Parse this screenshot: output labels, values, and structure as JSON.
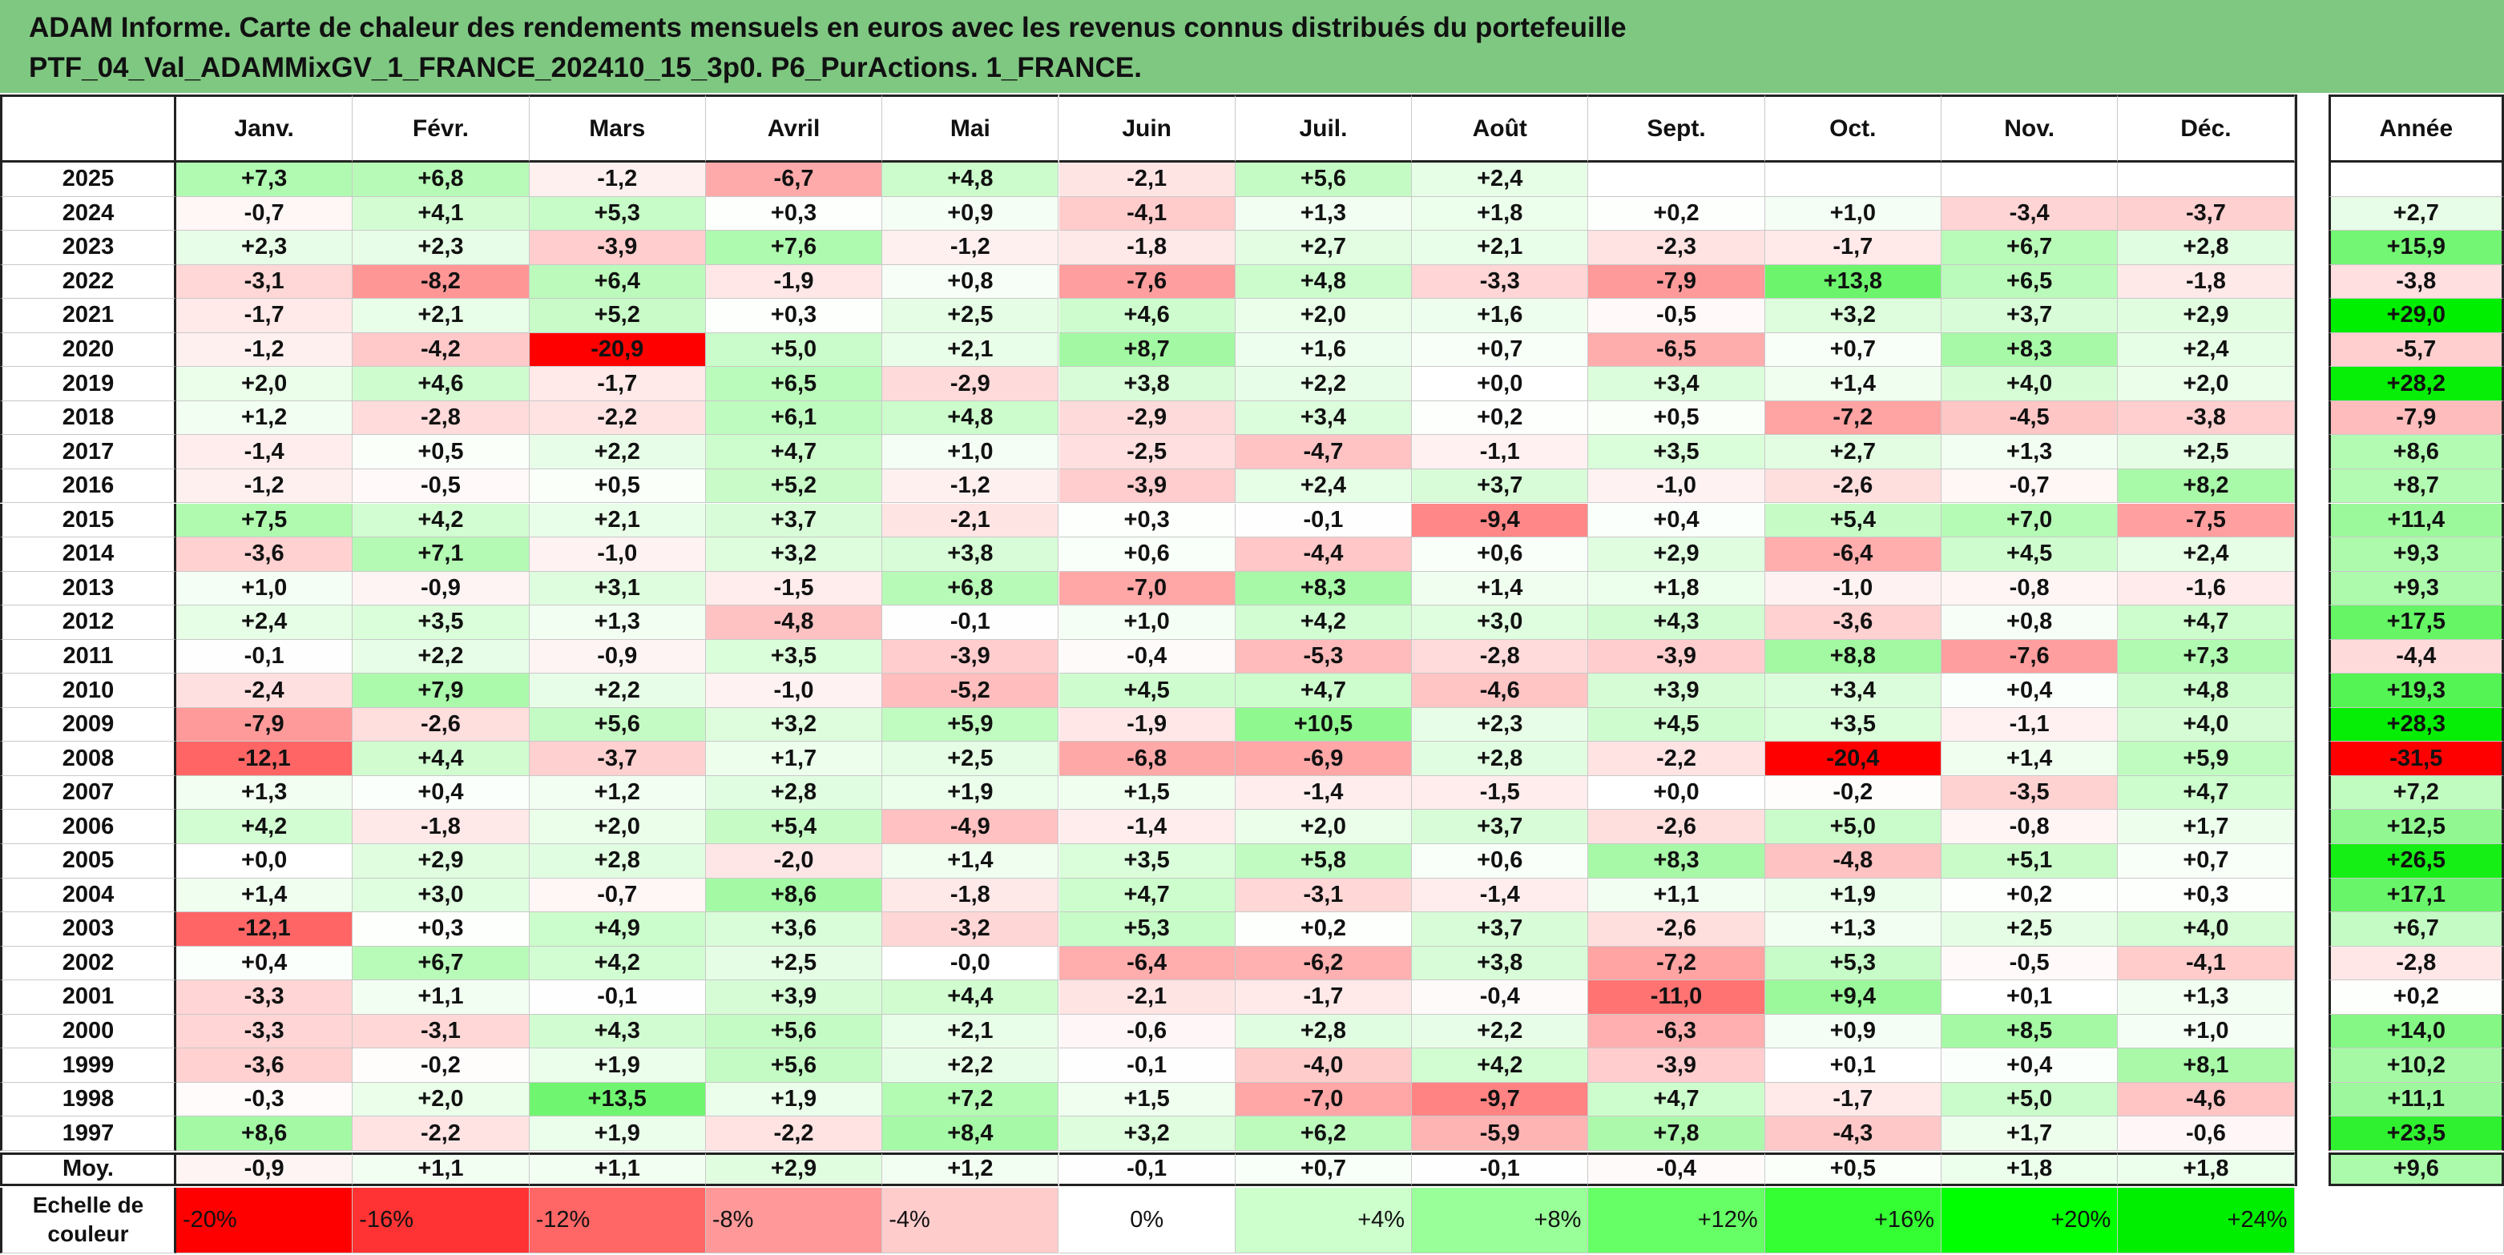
{
  "title": {
    "line1": "ADAM Informe. Carte de chaleur des rendements mensuels en euros avec les revenus connus distribués du portefeuille",
    "line2": "PTF_04_Val_ADAMMixGV_1_FRANCE_202410_15_3p0. P6_PurActions. 1_FRANCE."
  },
  "chart_data": {
    "type": "heatmap",
    "title": "ADAM Informe. Carte de chaleur des rendements mensuels en euros avec les revenus connus distribués du portefeuille PTF_04_Val_ADAMMixGV_1_FRANCE_202410_15_3p0. P6_PurActions. 1_FRANCE.",
    "columns": [
      "Janv.",
      "Févr.",
      "Mars",
      "Avril",
      "Mai",
      "Juin",
      "Juil.",
      "Août",
      "Sept.",
      "Oct.",
      "Nov.",
      "Déc."
    ],
    "annual_label": "Année",
    "rows": [
      {
        "year": "2025",
        "months": [
          "+7,3",
          "+6,8",
          "-1,2",
          "-6,7",
          "+4,8",
          "-2,1",
          "+5,6",
          "+2,4",
          "",
          "",
          "",
          ""
        ],
        "annual": ""
      },
      {
        "year": "2024",
        "months": [
          "-0,7",
          "+4,1",
          "+5,3",
          "+0,3",
          "+0,9",
          "-4,1",
          "+1,3",
          "+1,8",
          "+0,2",
          "+1,0",
          "-3,4",
          "-3,7"
        ],
        "annual": "+2,7"
      },
      {
        "year": "2023",
        "months": [
          "+2,3",
          "+2,3",
          "-3,9",
          "+7,6",
          "-1,2",
          "-1,8",
          "+2,7",
          "+2,1",
          "-2,3",
          "-1,7",
          "+6,7",
          "+2,8"
        ],
        "annual": "+15,9"
      },
      {
        "year": "2022",
        "months": [
          "-3,1",
          "-8,2",
          "+6,4",
          "-1,9",
          "+0,8",
          "-7,6",
          "+4,8",
          "-3,3",
          "-7,9",
          "+13,8",
          "+6,5",
          "-1,8"
        ],
        "annual": "-3,8"
      },
      {
        "year": "2021",
        "months": [
          "-1,7",
          "+2,1",
          "+5,2",
          "+0,3",
          "+2,5",
          "+4,6",
          "+2,0",
          "+1,6",
          "-0,5",
          "+3,2",
          "+3,7",
          "+2,9"
        ],
        "annual": "+29,0"
      },
      {
        "year": "2020",
        "months": [
          "-1,2",
          "-4,2",
          "-20,9",
          "+5,0",
          "+2,1",
          "+8,7",
          "+1,6",
          "+0,7",
          "-6,5",
          "+0,7",
          "+8,3",
          "+2,4"
        ],
        "annual": "-5,7"
      },
      {
        "year": "2019",
        "months": [
          "+2,0",
          "+4,6",
          "-1,7",
          "+6,5",
          "-2,9",
          "+3,8",
          "+2,2",
          "+0,0",
          "+3,4",
          "+1,4",
          "+4,0",
          "+2,0"
        ],
        "annual": "+28,2"
      },
      {
        "year": "2018",
        "months": [
          "+1,2",
          "-2,8",
          "-2,2",
          "+6,1",
          "+4,8",
          "-2,9",
          "+3,4",
          "+0,2",
          "+0,5",
          "-7,2",
          "-4,5",
          "-3,8"
        ],
        "annual": "-7,9"
      },
      {
        "year": "2017",
        "months": [
          "-1,4",
          "+0,5",
          "+2,2",
          "+4,7",
          "+1,0",
          "-2,5",
          "-4,7",
          "-1,1",
          "+3,5",
          "+2,7",
          "+1,3",
          "+2,5"
        ],
        "annual": "+8,6"
      },
      {
        "year": "2016",
        "months": [
          "-1,2",
          "-0,5",
          "+0,5",
          "+5,2",
          "-1,2",
          "-3,9",
          "+2,4",
          "+3,7",
          "-1,0",
          "-2,6",
          "-0,7",
          "+8,2"
        ],
        "annual": "+8,7"
      },
      {
        "year": "2015",
        "months": [
          "+7,5",
          "+4,2",
          "+2,1",
          "+3,7",
          "-2,1",
          "+0,3",
          "-0,1",
          "-9,4",
          "+0,4",
          "+5,4",
          "+7,0",
          "-7,5"
        ],
        "annual": "+11,4"
      },
      {
        "year": "2014",
        "months": [
          "-3,6",
          "+7,1",
          "-1,0",
          "+3,2",
          "+3,8",
          "+0,6",
          "-4,4",
          "+0,6",
          "+2,9",
          "-6,4",
          "+4,5",
          "+2,4"
        ],
        "annual": "+9,3"
      },
      {
        "year": "2013",
        "months": [
          "+1,0",
          "-0,9",
          "+3,1",
          "-1,5",
          "+6,8",
          "-7,0",
          "+8,3",
          "+1,4",
          "+1,8",
          "-1,0",
          "-0,8",
          "-1,6"
        ],
        "annual": "+9,3"
      },
      {
        "year": "2012",
        "months": [
          "+2,4",
          "+3,5",
          "+1,3",
          "-4,8",
          "-0,1",
          "+1,0",
          "+4,2",
          "+3,0",
          "+4,3",
          "-3,6",
          "+0,8",
          "+4,7"
        ],
        "annual": "+17,5"
      },
      {
        "year": "2011",
        "months": [
          "-0,1",
          "+2,2",
          "-0,9",
          "+3,5",
          "-3,9",
          "-0,4",
          "-5,3",
          "-2,8",
          "-3,9",
          "+8,8",
          "-7,6",
          "+7,3"
        ],
        "annual": "-4,4"
      },
      {
        "year": "2010",
        "months": [
          "-2,4",
          "+7,9",
          "+2,2",
          "-1,0",
          "-5,2",
          "+4,5",
          "+4,7",
          "-4,6",
          "+3,9",
          "+3,4",
          "+0,4",
          "+4,8"
        ],
        "annual": "+19,3"
      },
      {
        "year": "2009",
        "months": [
          "-7,9",
          "-2,6",
          "+5,6",
          "+3,2",
          "+5,9",
          "-1,9",
          "+10,5",
          "+2,3",
          "+4,5",
          "+3,5",
          "-1,1",
          "+4,0"
        ],
        "annual": "+28,3"
      },
      {
        "year": "2008",
        "months": [
          "-12,1",
          "+4,4",
          "-3,7",
          "+1,7",
          "+2,5",
          "-6,8",
          "-6,9",
          "+2,8",
          "-2,2",
          "-20,4",
          "+1,4",
          "+5,9"
        ],
        "annual": "-31,5"
      },
      {
        "year": "2007",
        "months": [
          "+1,3",
          "+0,4",
          "+1,2",
          "+2,8",
          "+1,9",
          "+1,5",
          "-1,4",
          "-1,5",
          "+0,0",
          "-0,2",
          "-3,5",
          "+4,7"
        ],
        "annual": "+7,2"
      },
      {
        "year": "2006",
        "months": [
          "+4,2",
          "-1,8",
          "+2,0",
          "+5,4",
          "-4,9",
          "-1,4",
          "+2,0",
          "+3,7",
          "-2,6",
          "+5,0",
          "-0,8",
          "+1,7"
        ],
        "annual": "+12,5"
      },
      {
        "year": "2005",
        "months": [
          "+0,0",
          "+2,9",
          "+2,8",
          "-2,0",
          "+1,4",
          "+3,5",
          "+5,8",
          "+0,6",
          "+8,3",
          "-4,8",
          "+5,1",
          "+0,7"
        ],
        "annual": "+26,5"
      },
      {
        "year": "2004",
        "months": [
          "+1,4",
          "+3,0",
          "-0,7",
          "+8,6",
          "-1,8",
          "+4,7",
          "-3,1",
          "-1,4",
          "+1,1",
          "+1,9",
          "+0,2",
          "+0,3"
        ],
        "annual": "+17,1"
      },
      {
        "year": "2003",
        "months": [
          "-12,1",
          "+0,3",
          "+4,9",
          "+3,6",
          "-3,2",
          "+5,3",
          "+0,2",
          "+3,7",
          "-2,6",
          "+1,3",
          "+2,5",
          "+4,0"
        ],
        "annual": "+6,7"
      },
      {
        "year": "2002",
        "months": [
          "+0,4",
          "+6,7",
          "+4,2",
          "+2,5",
          "-0,0",
          "-6,4",
          "-6,2",
          "+3,8",
          "-7,2",
          "+5,3",
          "-0,5",
          "-4,1"
        ],
        "annual": "-2,8"
      },
      {
        "year": "2001",
        "months": [
          "-3,3",
          "+1,1",
          "-0,1",
          "+3,9",
          "+4,4",
          "-2,1",
          "-1,7",
          "-0,4",
          "-11,0",
          "+9,4",
          "+0,1",
          "+1,3"
        ],
        "annual": "+0,2"
      },
      {
        "year": "2000",
        "months": [
          "-3,3",
          "-3,1",
          "+4,3",
          "+5,6",
          "+2,1",
          "-0,6",
          "+2,8",
          "+2,2",
          "-6,3",
          "+0,9",
          "+8,5",
          "+1,0"
        ],
        "annual": "+14,0"
      },
      {
        "year": "1999",
        "months": [
          "-3,6",
          "-0,2",
          "+1,9",
          "+5,6",
          "+2,2",
          "-0,1",
          "-4,0",
          "+4,2",
          "-3,9",
          "+0,1",
          "+0,4",
          "+8,1"
        ],
        "annual": "+10,2"
      },
      {
        "year": "1998",
        "months": [
          "-0,3",
          "+2,0",
          "+13,5",
          "+1,9",
          "+7,2",
          "+1,5",
          "-7,0",
          "-9,7",
          "+4,7",
          "-1,7",
          "+5,0",
          "-4,6"
        ],
        "annual": "+11,1"
      },
      {
        "year": "1997",
        "months": [
          "+8,6",
          "-2,2",
          "+1,9",
          "-2,2",
          "+8,4",
          "+3,2",
          "+6,2",
          "-5,9",
          "+7,8",
          "-4,3",
          "+1,7",
          "-0,6"
        ],
        "annual": "+23,5"
      }
    ],
    "average": {
      "label": "Moy.",
      "months": [
        "-0,9",
        "+1,1",
        "+1,1",
        "+2,9",
        "+1,2",
        "-0,1",
        "+0,7",
        "-0,1",
        "-0,4",
        "+0,5",
        "+1,8",
        "+1,8"
      ],
      "annual": "+9,6"
    },
    "scale": {
      "label_line1": "Echelle de",
      "label_line2": "couleur",
      "steps": [
        "-20%",
        "-16%",
        "-12%",
        "-8%",
        "-4%",
        "0%",
        "+4%",
        "+8%",
        "+12%",
        "+16%",
        "+20%",
        "+24%"
      ],
      "colors": [
        "#FF0000",
        "#FF3333",
        "#FF6666",
        "#FF9999",
        "#FFCCCC",
        "#FFFFFF",
        "#CCFFCC",
        "#99FF99",
        "#66FF66",
        "#33FF33",
        "#00FF00",
        "#00EE00"
      ]
    }
  }
}
